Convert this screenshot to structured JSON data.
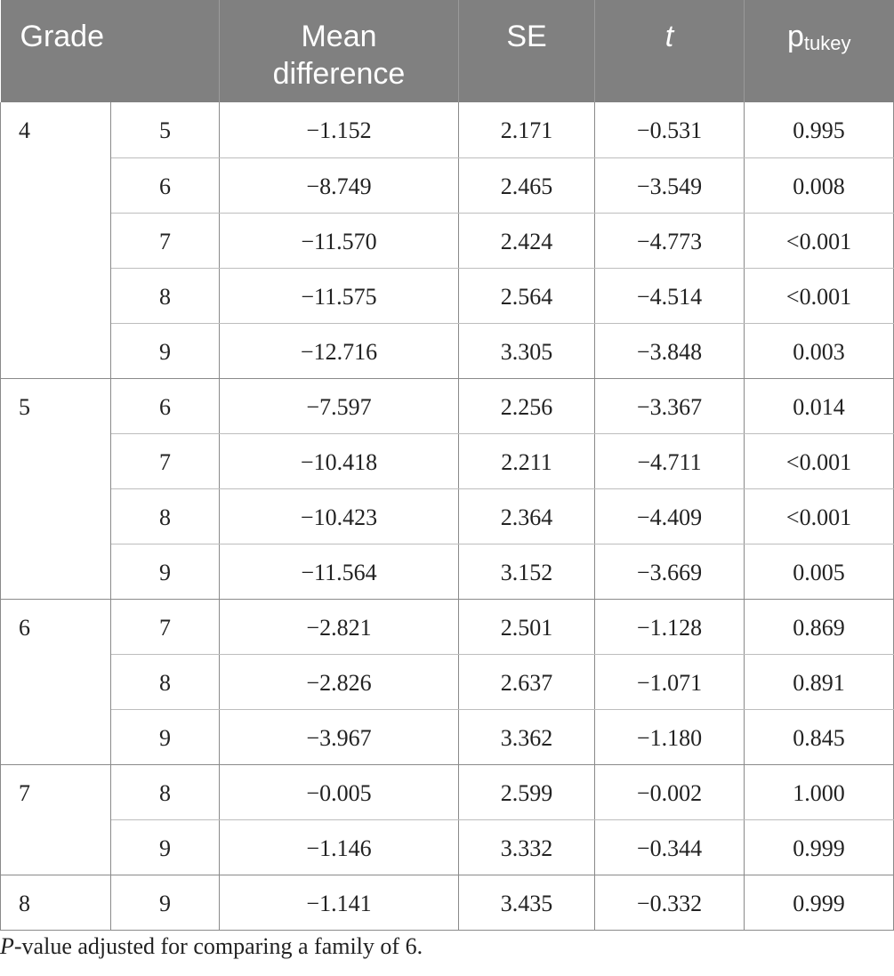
{
  "headers": {
    "grade": "Grade",
    "mean_difference_line1": "Mean",
    "mean_difference_line2": "difference",
    "se": "SE",
    "t": "t",
    "p_main": "p",
    "p_sub": "tukey"
  },
  "groups": [
    {
      "grade": "4",
      "rows": [
        {
          "vs": "5",
          "mean": "−1.152",
          "se": "2.171",
          "t": "−0.531",
          "p": "0.995"
        },
        {
          "vs": "6",
          "mean": "−8.749",
          "se": "2.465",
          "t": "−3.549",
          "p": "0.008"
        },
        {
          "vs": "7",
          "mean": "−11.570",
          "se": "2.424",
          "t": "−4.773",
          "p": "<0.001"
        },
        {
          "vs": "8",
          "mean": "−11.575",
          "se": "2.564",
          "t": "−4.514",
          "p": "<0.001"
        },
        {
          "vs": "9",
          "mean": "−12.716",
          "se": "3.305",
          "t": "−3.848",
          "p": "0.003"
        }
      ]
    },
    {
      "grade": "5",
      "rows": [
        {
          "vs": "6",
          "mean": "−7.597",
          "se": "2.256",
          "t": "−3.367",
          "p": "0.014"
        },
        {
          "vs": "7",
          "mean": "−10.418",
          "se": "2.211",
          "t": "−4.711",
          "p": "<0.001"
        },
        {
          "vs": "8",
          "mean": "−10.423",
          "se": "2.364",
          "t": "−4.409",
          "p": "<0.001"
        },
        {
          "vs": "9",
          "mean": "−11.564",
          "se": "3.152",
          "t": "−3.669",
          "p": "0.005"
        }
      ]
    },
    {
      "grade": "6",
      "rows": [
        {
          "vs": "7",
          "mean": "−2.821",
          "se": "2.501",
          "t": "−1.128",
          "p": "0.869"
        },
        {
          "vs": "8",
          "mean": "−2.826",
          "se": "2.637",
          "t": "−1.071",
          "p": "0.891"
        },
        {
          "vs": "9",
          "mean": "−3.967",
          "se": "3.362",
          "t": "−1.180",
          "p": "0.845"
        }
      ]
    },
    {
      "grade": "7",
      "rows": [
        {
          "vs": "8",
          "mean": "−0.005",
          "se": "2.599",
          "t": "−0.002",
          "p": "1.000"
        },
        {
          "vs": "9",
          "mean": "−1.146",
          "se": "3.332",
          "t": "−0.344",
          "p": "0.999"
        }
      ]
    },
    {
      "grade": "8",
      "rows": [
        {
          "vs": "9",
          "mean": "−1.141",
          "se": "3.435",
          "t": "−0.332",
          "p": "0.999"
        }
      ]
    }
  ],
  "footnote": {
    "italic_part": "P",
    "rest": "-value adjusted for comparing a family of 6."
  },
  "colors": {
    "header_background": "#808080",
    "header_text": "#ffffff",
    "body_text": "#222222",
    "rule": "#8a8a8a"
  }
}
